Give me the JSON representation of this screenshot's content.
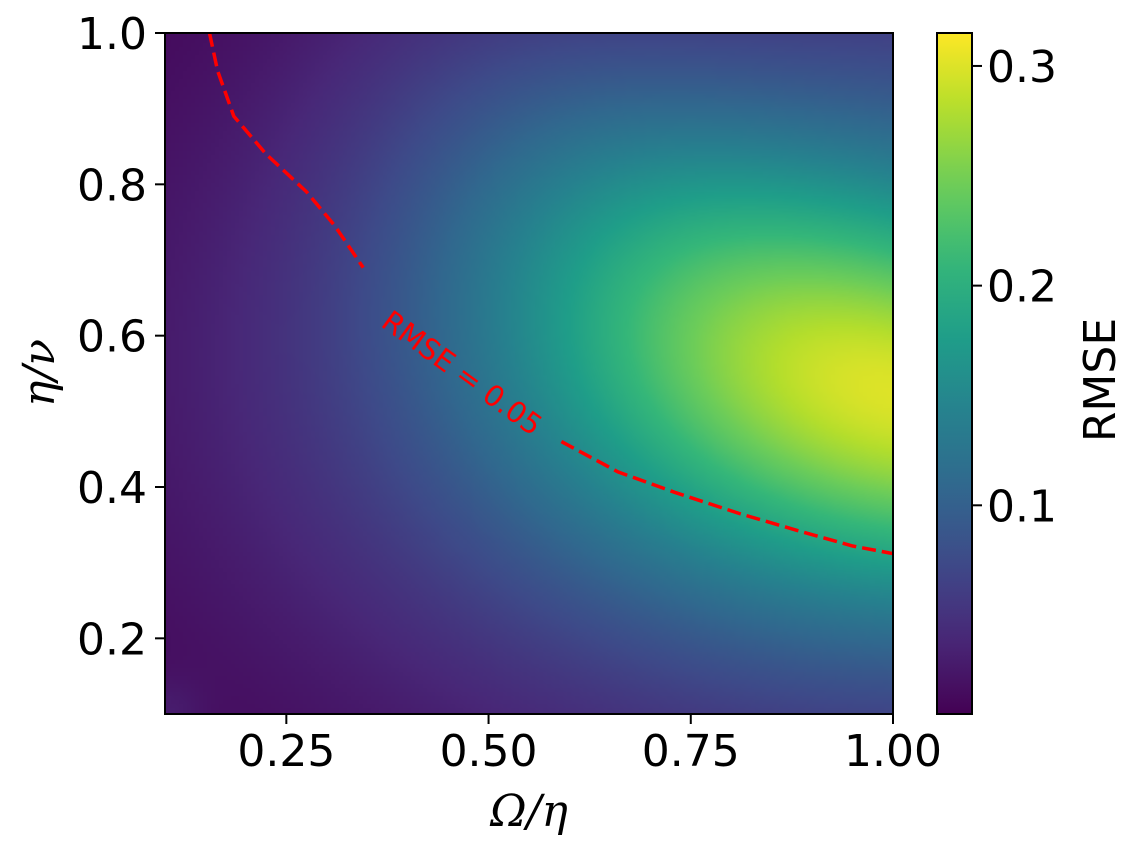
{
  "chart_data": {
    "type": "heatmap",
    "colormap": "viridis",
    "xlabel": "Ω/η",
    "ylabel": "η/ν",
    "xlim": [
      0.1,
      1.0
    ],
    "ylim": [
      0.1,
      1.0
    ],
    "x_ticks": [
      0.25,
      0.5,
      0.75,
      1.0
    ],
    "x_tick_labels": [
      "0.25",
      "0.50",
      "0.75",
      "1.00"
    ],
    "y_ticks": [
      0.2,
      0.4,
      0.6,
      0.8,
      1.0
    ],
    "y_tick_labels": [
      "0.2",
      "0.4",
      "0.6",
      "0.8",
      "1.0"
    ],
    "colorbar": {
      "label": "RMSE",
      "range": [
        0.005,
        0.315
      ],
      "ticks": [
        0.1,
        0.2,
        0.3
      ],
      "tick_labels": [
        "0.1",
        "0.2",
        "0.3"
      ]
    },
    "contour": {
      "level": 0.05,
      "label": "RMSE = 0.05",
      "color": "#ff0000",
      "style": "dashed",
      "points": [
        [
          0.155,
          1.0
        ],
        [
          0.165,
          0.95
        ],
        [
          0.185,
          0.89
        ],
        [
          0.225,
          0.84
        ],
        [
          0.275,
          0.79
        ],
        [
          0.31,
          0.745
        ],
        [
          0.345,
          0.69
        ],
        [
          0.395,
          0.62
        ],
        [
          0.455,
          0.555
        ],
        [
          0.52,
          0.505
        ],
        [
          0.59,
          0.46
        ],
        [
          0.66,
          0.42
        ],
        [
          0.73,
          0.393
        ],
        [
          0.81,
          0.365
        ],
        [
          0.89,
          0.34
        ],
        [
          0.95,
          0.322
        ],
        [
          1.0,
          0.312
        ]
      ]
    },
    "peak": {
      "x": 0.98,
      "y": 0.56,
      "value": 0.315
    }
  }
}
